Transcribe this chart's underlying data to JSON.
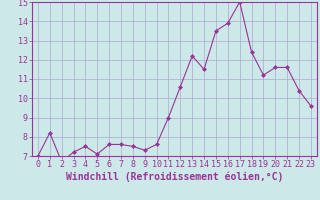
{
  "x": [
    0,
    1,
    2,
    3,
    4,
    5,
    6,
    7,
    8,
    9,
    10,
    11,
    12,
    13,
    14,
    15,
    16,
    17,
    18,
    19,
    20,
    21,
    22,
    23
  ],
  "y": [
    7.0,
    8.2,
    6.7,
    7.2,
    7.5,
    7.1,
    7.6,
    7.6,
    7.5,
    7.3,
    7.6,
    9.0,
    10.6,
    12.2,
    11.5,
    13.5,
    13.9,
    15.0,
    12.4,
    11.2,
    11.6,
    11.6,
    10.4,
    9.6
  ],
  "ylim": [
    7,
    15
  ],
  "yticks": [
    7,
    8,
    9,
    10,
    11,
    12,
    13,
    14,
    15
  ],
  "xticks": [
    0,
    1,
    2,
    3,
    4,
    5,
    6,
    7,
    8,
    9,
    10,
    11,
    12,
    13,
    14,
    15,
    16,
    17,
    18,
    19,
    20,
    21,
    22,
    23
  ],
  "xlabel": "Windchill (Refroidissement éolien,°C)",
  "line_color": "#993399",
  "marker": "D",
  "marker_size": 2.0,
  "bg_color": "#cce8e8",
  "grid_color": "#aaaacc",
  "axis_color": "#993399",
  "tick_color": "#993399",
  "label_color": "#993399",
  "tick_fontsize": 6,
  "xlabel_fontsize": 7
}
